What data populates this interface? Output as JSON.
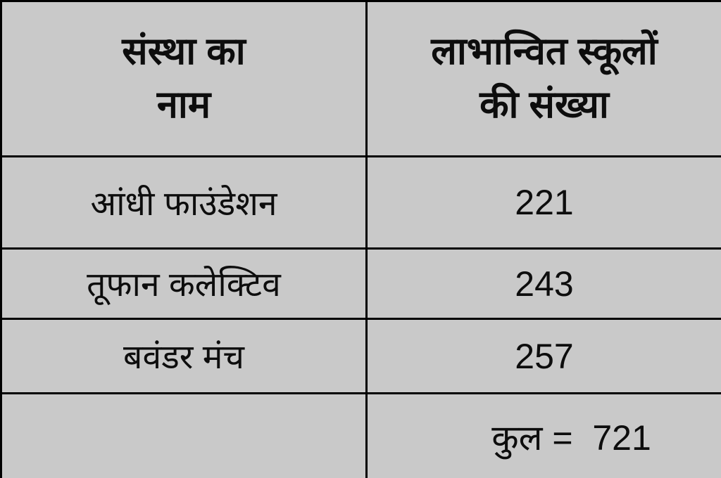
{
  "colors": {
    "table_background": "#c9c9c9",
    "border": "#000000",
    "text": "#0d0d0d"
  },
  "table": {
    "header": {
      "col1": "संस्था का\nनाम",
      "col2": "लाभान्वित स्कूलों\nकी संख्या"
    },
    "rows": [
      {
        "name": "आंधी फाउंडेशन",
        "count": "221"
      },
      {
        "name": "तूफान कलेक्टिव",
        "count": "243"
      },
      {
        "name": "बवंडर मंच",
        "count": "257"
      }
    ],
    "total_row": {
      "empty_cell": "",
      "total_text": "कुल =  721"
    }
  },
  "chart_data": {
    "type": "table",
    "title": "",
    "columns": [
      "संस्था का नाम",
      "लाभान्वित स्कूलों की संख्या"
    ],
    "categories": [
      "आंधी फाउंडेशन",
      "तूफान कलेक्टिव",
      "बवंडर मंच"
    ],
    "values": [
      221,
      243,
      257
    ],
    "total_label": "कुल",
    "total_value": 721
  }
}
